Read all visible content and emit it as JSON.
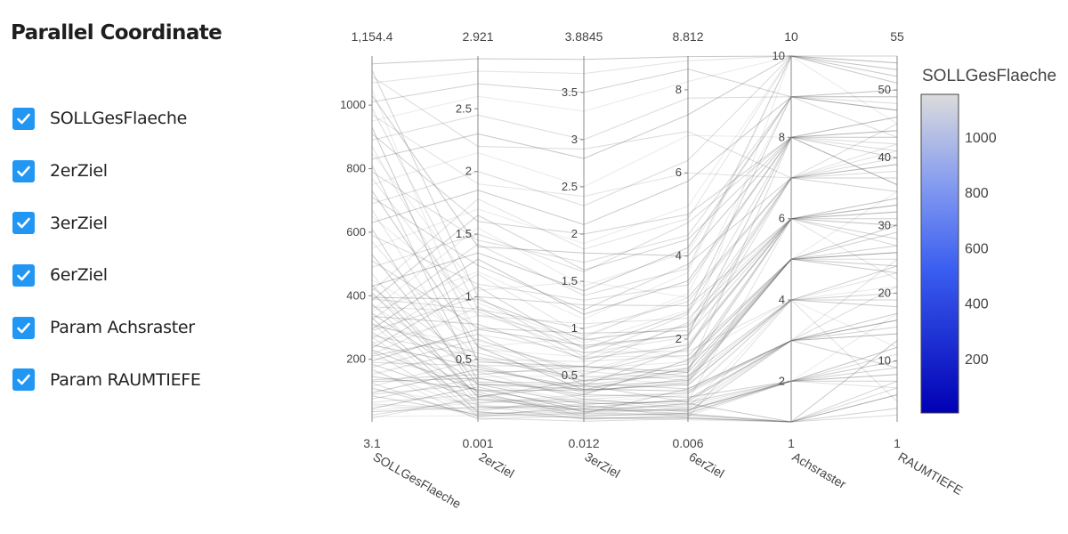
{
  "sidebar": {
    "title": "Parallel Coordinate",
    "items": [
      {
        "label": "SOLLGesFlaeche",
        "checked": true
      },
      {
        "label": "2erZiel",
        "checked": true
      },
      {
        "label": "3erZiel",
        "checked": true
      },
      {
        "label": "6erZiel",
        "checked": true
      },
      {
        "label": "Param Achsraster",
        "checked": true
      },
      {
        "label": "Param RAUMTIEFE",
        "checked": true
      }
    ]
  },
  "colors": {
    "checkbox": "#2196f3",
    "line": "#555555",
    "axis": "#888888",
    "colorscale_low": "#0000b4",
    "colorscale_mid": "#5a78f0",
    "colorscale_high": "#dcdcdc"
  },
  "chart_data": {
    "type": "parcoords",
    "axes": [
      {
        "label": "SOLLGesFlaeche",
        "min": 3.1,
        "max": 1154.4,
        "min_label": "3.1",
        "max_label": "1,154.4",
        "ticks": [
          200,
          400,
          600,
          800,
          1000
        ],
        "tick_labels": [
          "200",
          "400",
          "600",
          "800",
          "1000"
        ]
      },
      {
        "label": "2erZiel",
        "min": 0.001,
        "max": 2.921,
        "min_label": "0.001",
        "max_label": "2.921",
        "ticks": [
          0.5,
          1,
          1.5,
          2,
          2.5
        ],
        "tick_labels": [
          "0.5",
          "1",
          "1.5",
          "2",
          "2.5"
        ]
      },
      {
        "label": "3erZiel",
        "min": 0.012,
        "max": 3.8845,
        "min_label": "0.012",
        "max_label": "3.8845",
        "ticks": [
          0.5,
          1,
          1.5,
          2,
          2.5,
          3,
          3.5
        ],
        "tick_labels": [
          "0.5",
          "1",
          "1.5",
          "2",
          "2.5",
          "3",
          "3.5"
        ]
      },
      {
        "label": "6erZiel",
        "min": 0.006,
        "max": 8.812,
        "min_label": "0.006",
        "max_label": "8.812",
        "ticks": [
          2,
          4,
          6,
          8
        ],
        "tick_labels": [
          "2",
          "4",
          "6",
          "8"
        ]
      },
      {
        "label": "Achsraster",
        "min": 1,
        "max": 10,
        "min_label": "1",
        "max_label": "10",
        "ticks": [
          2,
          4,
          6,
          8,
          10
        ],
        "tick_labels": [
          "2",
          "4",
          "6",
          "8",
          "10"
        ]
      },
      {
        "label": "RAUMTIEFE",
        "min": 1,
        "max": 55,
        "min_label": "1",
        "max_label": "55",
        "ticks": [
          10,
          20,
          30,
          40,
          50
        ],
        "tick_labels": [
          "10",
          "20",
          "30",
          "40",
          "50"
        ]
      }
    ],
    "colorbar": {
      "title": "SOLLGesFlaeche",
      "min": 3.1,
      "max": 1154.4,
      "ticks": [
        200,
        400,
        600,
        800,
        1000
      ],
      "tick_labels": [
        "200",
        "400",
        "600",
        "800",
        "1000"
      ]
    },
    "lines": [
      [
        40,
        0.15,
        0.25,
        0.35,
        4,
        12
      ],
      [
        60,
        0.1,
        0.2,
        0.5,
        6,
        22
      ],
      [
        90,
        0.3,
        0.4,
        1.2,
        8,
        36
      ],
      [
        110,
        0.05,
        0.1,
        0.8,
        3,
        15
      ],
      [
        130,
        0.35,
        0.3,
        1.5,
        5,
        30
      ],
      [
        150,
        0.6,
        0.5,
        2.0,
        10,
        45
      ],
      [
        170,
        0.02,
        0.08,
        0.2,
        2,
        8
      ],
      [
        190,
        0.45,
        0.6,
        2.4,
        7,
        40
      ],
      [
        210,
        0.7,
        0.4,
        1.8,
        6,
        28
      ],
      [
        230,
        0.25,
        0.35,
        0.9,
        4,
        18
      ],
      [
        250,
        0.85,
        0.9,
        3.1,
        9,
        50
      ],
      [
        270,
        0.12,
        0.15,
        0.4,
        3,
        25
      ],
      [
        290,
        1.0,
        0.7,
        2.6,
        8,
        42
      ],
      [
        310,
        0.55,
        0.45,
        1.4,
        6,
        33
      ],
      [
        330,
        0.08,
        0.05,
        0.1,
        1,
        5
      ],
      [
        350,
        1.2,
        1.1,
        3.6,
        10,
        52
      ],
      [
        370,
        0.4,
        0.25,
        0.7,
        4,
        20
      ],
      [
        390,
        0.9,
        1.0,
        2.9,
        7,
        38
      ],
      [
        410,
        0.2,
        0.45,
        1.1,
        5,
        27
      ],
      [
        430,
        1.35,
        1.4,
        4.2,
        9,
        47
      ],
      [
        450,
        0.65,
        0.55,
        1.9,
        6,
        31
      ],
      [
        470,
        0.15,
        0.3,
        0.6,
        2,
        10
      ],
      [
        490,
        1.5,
        1.6,
        4.8,
        8,
        44
      ],
      [
        510,
        0.75,
        0.95,
        2.2,
        7,
        35
      ],
      [
        530,
        0.3,
        0.2,
        0.5,
        3,
        14
      ],
      [
        550,
        1.7,
        1.9,
        5.2,
        10,
        54
      ],
      [
        570,
        0.5,
        0.65,
        1.6,
        5,
        29
      ],
      [
        590,
        1.1,
        1.3,
        3.3,
        8,
        41
      ],
      [
        610,
        0.22,
        0.12,
        0.3,
        2,
        7
      ],
      [
        630,
        1.85,
        2.1,
        5.8,
        9,
        49
      ],
      [
        650,
        0.95,
        0.85,
        2.7,
        6,
        34
      ],
      [
        670,
        0.4,
        0.55,
        1.0,
        4,
        19
      ],
      [
        690,
        2.0,
        2.3,
        6.3,
        10,
        53
      ],
      [
        710,
        1.25,
        1.2,
        3.8,
        7,
        39
      ],
      [
        730,
        0.6,
        0.35,
        1.3,
        5,
        24
      ],
      [
        750,
        2.15,
        2.5,
        6.9,
        8,
        46
      ],
      [
        770,
        0.85,
        1.05,
        2.5,
        6,
        32
      ],
      [
        790,
        1.45,
        1.7,
        4.5,
        9,
        43
      ],
      [
        810,
        0.32,
        0.42,
        0.8,
        3,
        16
      ],
      [
        830,
        2.3,
        2.8,
        7.4,
        10,
        51
      ],
      [
        850,
        1.05,
        1.5,
        3.0,
        7,
        37
      ],
      [
        870,
        0.7,
        0.75,
        1.7,
        4,
        23
      ],
      [
        890,
        2.45,
        3.0,
        7.8,
        9,
        48
      ],
      [
        910,
        1.6,
        2.0,
        5.0,
        8,
        40
      ],
      [
        930,
        0.48,
        0.6,
        1.2,
        5,
        26
      ],
      [
        950,
        2.6,
        3.3,
        8.2,
        10,
        55
      ],
      [
        970,
        1.9,
        2.4,
        6.0,
        7,
        42
      ],
      [
        990,
        0.9,
        0.8,
        2.1,
        6,
        30
      ],
      [
        1010,
        2.7,
        3.5,
        8.5,
        9,
        50
      ],
      [
        1030,
        1.4,
        1.8,
        4.0,
        8,
        36
      ],
      [
        1050,
        0.6,
        0.9,
        1.5,
        4,
        21
      ],
      [
        1070,
        2.8,
        3.7,
        8.7,
        10,
        53
      ],
      [
        1090,
        2.2,
        2.9,
        7.0,
        7,
        45
      ],
      [
        1110,
        1.0,
        1.25,
        2.8,
        6,
        33
      ],
      [
        1130,
        2.9,
        3.85,
        8.8,
        10,
        54
      ],
      [
        20,
        0.05,
        0.06,
        0.05,
        1,
        3
      ],
      [
        15,
        0.2,
        0.1,
        0.15,
        2,
        6
      ],
      [
        25,
        0.18,
        0.22,
        0.3,
        2,
        11
      ],
      [
        35,
        0.12,
        0.18,
        0.25,
        3,
        9
      ],
      [
        45,
        0.28,
        0.12,
        0.45,
        1,
        13
      ],
      [
        55,
        0.08,
        0.3,
        0.6,
        2,
        17
      ],
      [
        65,
        0.22,
        0.05,
        0.12,
        4,
        4
      ],
      [
        75,
        0.35,
        0.28,
        0.7,
        3,
        21
      ],
      [
        85,
        0.06,
        0.15,
        0.2,
        1,
        7
      ],
      [
        95,
        0.42,
        0.38,
        1.0,
        5,
        26
      ],
      [
        105,
        0.14,
        0.09,
        0.35,
        2,
        12
      ],
      [
        115,
        0.5,
        0.48,
        1.3,
        6,
        30
      ],
      [
        125,
        0.03,
        0.02,
        0.08,
        1,
        2
      ],
      [
        135,
        0.38,
        0.6,
        1.1,
        4,
        24
      ],
      [
        145,
        0.26,
        0.16,
        0.55,
        3,
        16
      ],
      [
        155,
        0.58,
        0.7,
        1.6,
        5,
        35
      ],
      [
        165,
        0.1,
        0.24,
        0.42,
        2,
        10
      ],
      [
        175,
        0.66,
        0.52,
        1.75,
        7,
        39
      ],
      [
        185,
        0.18,
        0.14,
        0.28,
        2,
        8
      ],
      [
        195,
        0.74,
        0.82,
        2.1,
        8,
        43
      ],
      [
        205,
        0.32,
        0.22,
        0.65,
        4,
        19
      ],
      [
        215,
        0.92,
        0.66,
        2.35,
        6,
        31
      ],
      [
        225,
        0.07,
        0.11,
        0.18,
        1,
        5
      ],
      [
        235,
        1.08,
        0.78,
        2.65,
        9,
        47
      ],
      [
        245,
        0.44,
        0.34,
        0.95,
        5,
        23
      ],
      [
        255,
        0.16,
        0.26,
        0.33,
        3,
        14
      ],
      [
        265,
        1.18,
        0.92,
        3.0,
        7,
        41
      ],
      [
        275,
        0.52,
        0.44,
        1.25,
        6,
        27
      ],
      [
        285,
        0.24,
        0.07,
        0.22,
        2,
        9
      ],
      [
        295,
        1.3,
        1.15,
        3.4,
        8,
        46
      ],
      [
        305,
        0.62,
        0.58,
        1.45,
        5,
        29
      ],
      [
        315,
        0.04,
        0.19,
        0.11,
        1,
        3
      ],
      [
        325,
        1.42,
        1.35,
        3.7,
        10,
        52
      ],
      [
        335,
        0.78,
        0.68,
        1.85,
        6,
        34
      ],
      [
        345,
        0.3,
        0.36,
        0.75,
        3,
        17
      ],
      [
        355,
        1.55,
        1.45,
        4.1,
        9,
        49
      ],
      [
        365,
        0.88,
        0.74,
        2.05,
        7,
        37
      ],
      [
        375,
        0.13,
        0.04,
        0.16,
        1,
        6
      ],
      [
        385,
        1.65,
        1.62,
        4.4,
        8,
        44
      ],
      [
        395,
        0.98,
        0.88,
        2.3,
        6,
        32
      ],
      [
        405,
        0.36,
        0.5,
        0.88,
        4,
        20
      ],
      [
        415,
        1.78,
        1.84,
        4.9,
        10,
        55
      ],
      [
        425,
        0.46,
        0.32,
        1.05,
        5,
        25
      ],
      [
        435,
        0.2,
        0.4,
        0.48,
        2,
        12
      ]
    ]
  }
}
